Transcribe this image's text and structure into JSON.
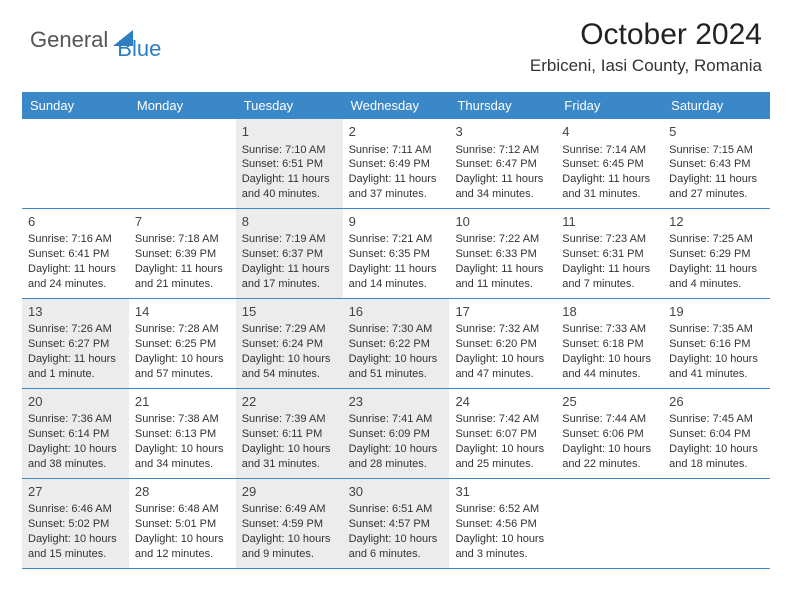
{
  "logo": {
    "general": "General",
    "blue": "Blue"
  },
  "title": "October 2024",
  "location": "Erbiceni, Iasi County, Romania",
  "colors": {
    "accent": "#3b88c9",
    "alt_bg": "#ececec",
    "text": "#333333"
  },
  "weekdays": [
    "Sunday",
    "Monday",
    "Tuesday",
    "Wednesday",
    "Thursday",
    "Friday",
    "Saturday"
  ],
  "weeks": [
    [
      {
        "empty": true,
        "alt": false
      },
      {
        "empty": true,
        "alt": false
      },
      {
        "num": "1",
        "alt": true,
        "sunrise": "Sunrise: 7:10 AM",
        "sunset": "Sunset: 6:51 PM",
        "daylight1": "Daylight: 11 hours",
        "daylight2": "and 40 minutes."
      },
      {
        "num": "2",
        "alt": false,
        "sunrise": "Sunrise: 7:11 AM",
        "sunset": "Sunset: 6:49 PM",
        "daylight1": "Daylight: 11 hours",
        "daylight2": "and 37 minutes."
      },
      {
        "num": "3",
        "alt": false,
        "sunrise": "Sunrise: 7:12 AM",
        "sunset": "Sunset: 6:47 PM",
        "daylight1": "Daylight: 11 hours",
        "daylight2": "and 34 minutes."
      },
      {
        "num": "4",
        "alt": false,
        "sunrise": "Sunrise: 7:14 AM",
        "sunset": "Sunset: 6:45 PM",
        "daylight1": "Daylight: 11 hours",
        "daylight2": "and 31 minutes."
      },
      {
        "num": "5",
        "alt": false,
        "sunrise": "Sunrise: 7:15 AM",
        "sunset": "Sunset: 6:43 PM",
        "daylight1": "Daylight: 11 hours",
        "daylight2": "and 27 minutes."
      }
    ],
    [
      {
        "num": "6",
        "alt": false,
        "sunrise": "Sunrise: 7:16 AM",
        "sunset": "Sunset: 6:41 PM",
        "daylight1": "Daylight: 11 hours",
        "daylight2": "and 24 minutes."
      },
      {
        "num": "7",
        "alt": false,
        "sunrise": "Sunrise: 7:18 AM",
        "sunset": "Sunset: 6:39 PM",
        "daylight1": "Daylight: 11 hours",
        "daylight2": "and 21 minutes."
      },
      {
        "num": "8",
        "alt": true,
        "sunrise": "Sunrise: 7:19 AM",
        "sunset": "Sunset: 6:37 PM",
        "daylight1": "Daylight: 11 hours",
        "daylight2": "and 17 minutes."
      },
      {
        "num": "9",
        "alt": false,
        "sunrise": "Sunrise: 7:21 AM",
        "sunset": "Sunset: 6:35 PM",
        "daylight1": "Daylight: 11 hours",
        "daylight2": "and 14 minutes."
      },
      {
        "num": "10",
        "alt": false,
        "sunrise": "Sunrise: 7:22 AM",
        "sunset": "Sunset: 6:33 PM",
        "daylight1": "Daylight: 11 hours",
        "daylight2": "and 11 minutes."
      },
      {
        "num": "11",
        "alt": false,
        "sunrise": "Sunrise: 7:23 AM",
        "sunset": "Sunset: 6:31 PM",
        "daylight1": "Daylight: 11 hours",
        "daylight2": "and 7 minutes."
      },
      {
        "num": "12",
        "alt": false,
        "sunrise": "Sunrise: 7:25 AM",
        "sunset": "Sunset: 6:29 PM",
        "daylight1": "Daylight: 11 hours",
        "daylight2": "and 4 minutes."
      }
    ],
    [
      {
        "num": "13",
        "alt": true,
        "sunrise": "Sunrise: 7:26 AM",
        "sunset": "Sunset: 6:27 PM",
        "daylight1": "Daylight: 11 hours",
        "daylight2": "and 1 minute."
      },
      {
        "num": "14",
        "alt": false,
        "sunrise": "Sunrise: 7:28 AM",
        "sunset": "Sunset: 6:25 PM",
        "daylight1": "Daylight: 10 hours",
        "daylight2": "and 57 minutes."
      },
      {
        "num": "15",
        "alt": true,
        "sunrise": "Sunrise: 7:29 AM",
        "sunset": "Sunset: 6:24 PM",
        "daylight1": "Daylight: 10 hours",
        "daylight2": "and 54 minutes."
      },
      {
        "num": "16",
        "alt": true,
        "sunrise": "Sunrise: 7:30 AM",
        "sunset": "Sunset: 6:22 PM",
        "daylight1": "Daylight: 10 hours",
        "daylight2": "and 51 minutes."
      },
      {
        "num": "17",
        "alt": false,
        "sunrise": "Sunrise: 7:32 AM",
        "sunset": "Sunset: 6:20 PM",
        "daylight1": "Daylight: 10 hours",
        "daylight2": "and 47 minutes."
      },
      {
        "num": "18",
        "alt": false,
        "sunrise": "Sunrise: 7:33 AM",
        "sunset": "Sunset: 6:18 PM",
        "daylight1": "Daylight: 10 hours",
        "daylight2": "and 44 minutes."
      },
      {
        "num": "19",
        "alt": false,
        "sunrise": "Sunrise: 7:35 AM",
        "sunset": "Sunset: 6:16 PM",
        "daylight1": "Daylight: 10 hours",
        "daylight2": "and 41 minutes."
      }
    ],
    [
      {
        "num": "20",
        "alt": true,
        "sunrise": "Sunrise: 7:36 AM",
        "sunset": "Sunset: 6:14 PM",
        "daylight1": "Daylight: 10 hours",
        "daylight2": "and 38 minutes."
      },
      {
        "num": "21",
        "alt": false,
        "sunrise": "Sunrise: 7:38 AM",
        "sunset": "Sunset: 6:13 PM",
        "daylight1": "Daylight: 10 hours",
        "daylight2": "and 34 minutes."
      },
      {
        "num": "22",
        "alt": true,
        "sunrise": "Sunrise: 7:39 AM",
        "sunset": "Sunset: 6:11 PM",
        "daylight1": "Daylight: 10 hours",
        "daylight2": "and 31 minutes."
      },
      {
        "num": "23",
        "alt": true,
        "sunrise": "Sunrise: 7:41 AM",
        "sunset": "Sunset: 6:09 PM",
        "daylight1": "Daylight: 10 hours",
        "daylight2": "and 28 minutes."
      },
      {
        "num": "24",
        "alt": false,
        "sunrise": "Sunrise: 7:42 AM",
        "sunset": "Sunset: 6:07 PM",
        "daylight1": "Daylight: 10 hours",
        "daylight2": "and 25 minutes."
      },
      {
        "num": "25",
        "alt": false,
        "sunrise": "Sunrise: 7:44 AM",
        "sunset": "Sunset: 6:06 PM",
        "daylight1": "Daylight: 10 hours",
        "daylight2": "and 22 minutes."
      },
      {
        "num": "26",
        "alt": false,
        "sunrise": "Sunrise: 7:45 AM",
        "sunset": "Sunset: 6:04 PM",
        "daylight1": "Daylight: 10 hours",
        "daylight2": "and 18 minutes."
      }
    ],
    [
      {
        "num": "27",
        "alt": true,
        "sunrise": "Sunrise: 6:46 AM",
        "sunset": "Sunset: 5:02 PM",
        "daylight1": "Daylight: 10 hours",
        "daylight2": "and 15 minutes."
      },
      {
        "num": "28",
        "alt": false,
        "sunrise": "Sunrise: 6:48 AM",
        "sunset": "Sunset: 5:01 PM",
        "daylight1": "Daylight: 10 hours",
        "daylight2": "and 12 minutes."
      },
      {
        "num": "29",
        "alt": true,
        "sunrise": "Sunrise: 6:49 AM",
        "sunset": "Sunset: 4:59 PM",
        "daylight1": "Daylight: 10 hours",
        "daylight2": "and 9 minutes."
      },
      {
        "num": "30",
        "alt": true,
        "sunrise": "Sunrise: 6:51 AM",
        "sunset": "Sunset: 4:57 PM",
        "daylight1": "Daylight: 10 hours",
        "daylight2": "and 6 minutes."
      },
      {
        "num": "31",
        "alt": false,
        "sunrise": "Sunrise: 6:52 AM",
        "sunset": "Sunset: 4:56 PM",
        "daylight1": "Daylight: 10 hours",
        "daylight2": "and 3 minutes."
      },
      {
        "empty": true,
        "alt": false
      },
      {
        "empty": true,
        "alt": false
      }
    ]
  ]
}
